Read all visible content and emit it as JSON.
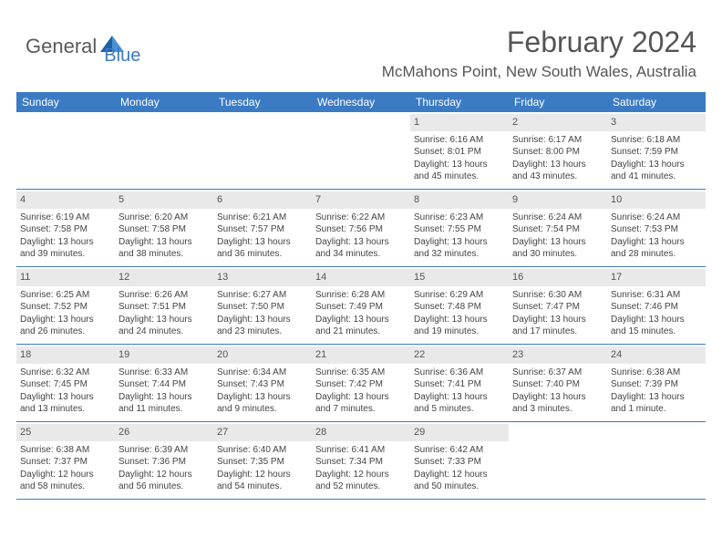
{
  "logo": {
    "text1": "General",
    "text2": "Blue"
  },
  "title": "February 2024",
  "location": "McMahons Point, New South Wales, Australia",
  "colors": {
    "header_bg": "#3b7bc4",
    "band_bg": "#e9e9e9",
    "text": "#444444",
    "title": "#555555"
  },
  "day_headers": [
    "Sunday",
    "Monday",
    "Tuesday",
    "Wednesday",
    "Thursday",
    "Friday",
    "Saturday"
  ],
  "weeks": [
    [
      {
        "n": "",
        "sr": "",
        "ss": "",
        "dl": ""
      },
      {
        "n": "",
        "sr": "",
        "ss": "",
        "dl": ""
      },
      {
        "n": "",
        "sr": "",
        "ss": "",
        "dl": ""
      },
      {
        "n": "",
        "sr": "",
        "ss": "",
        "dl": ""
      },
      {
        "n": "1",
        "sr": "Sunrise: 6:16 AM",
        "ss": "Sunset: 8:01 PM",
        "dl": "Daylight: 13 hours and 45 minutes."
      },
      {
        "n": "2",
        "sr": "Sunrise: 6:17 AM",
        "ss": "Sunset: 8:00 PM",
        "dl": "Daylight: 13 hours and 43 minutes."
      },
      {
        "n": "3",
        "sr": "Sunrise: 6:18 AM",
        "ss": "Sunset: 7:59 PM",
        "dl": "Daylight: 13 hours and 41 minutes."
      }
    ],
    [
      {
        "n": "4",
        "sr": "Sunrise: 6:19 AM",
        "ss": "Sunset: 7:58 PM",
        "dl": "Daylight: 13 hours and 39 minutes."
      },
      {
        "n": "5",
        "sr": "Sunrise: 6:20 AM",
        "ss": "Sunset: 7:58 PM",
        "dl": "Daylight: 13 hours and 38 minutes."
      },
      {
        "n": "6",
        "sr": "Sunrise: 6:21 AM",
        "ss": "Sunset: 7:57 PM",
        "dl": "Daylight: 13 hours and 36 minutes."
      },
      {
        "n": "7",
        "sr": "Sunrise: 6:22 AM",
        "ss": "Sunset: 7:56 PM",
        "dl": "Daylight: 13 hours and 34 minutes."
      },
      {
        "n": "8",
        "sr": "Sunrise: 6:23 AM",
        "ss": "Sunset: 7:55 PM",
        "dl": "Daylight: 13 hours and 32 minutes."
      },
      {
        "n": "9",
        "sr": "Sunrise: 6:24 AM",
        "ss": "Sunset: 7:54 PM",
        "dl": "Daylight: 13 hours and 30 minutes."
      },
      {
        "n": "10",
        "sr": "Sunrise: 6:24 AM",
        "ss": "Sunset: 7:53 PM",
        "dl": "Daylight: 13 hours and 28 minutes."
      }
    ],
    [
      {
        "n": "11",
        "sr": "Sunrise: 6:25 AM",
        "ss": "Sunset: 7:52 PM",
        "dl": "Daylight: 13 hours and 26 minutes."
      },
      {
        "n": "12",
        "sr": "Sunrise: 6:26 AM",
        "ss": "Sunset: 7:51 PM",
        "dl": "Daylight: 13 hours and 24 minutes."
      },
      {
        "n": "13",
        "sr": "Sunrise: 6:27 AM",
        "ss": "Sunset: 7:50 PM",
        "dl": "Daylight: 13 hours and 23 minutes."
      },
      {
        "n": "14",
        "sr": "Sunrise: 6:28 AM",
        "ss": "Sunset: 7:49 PM",
        "dl": "Daylight: 13 hours and 21 minutes."
      },
      {
        "n": "15",
        "sr": "Sunrise: 6:29 AM",
        "ss": "Sunset: 7:48 PM",
        "dl": "Daylight: 13 hours and 19 minutes."
      },
      {
        "n": "16",
        "sr": "Sunrise: 6:30 AM",
        "ss": "Sunset: 7:47 PM",
        "dl": "Daylight: 13 hours and 17 minutes."
      },
      {
        "n": "17",
        "sr": "Sunrise: 6:31 AM",
        "ss": "Sunset: 7:46 PM",
        "dl": "Daylight: 13 hours and 15 minutes."
      }
    ],
    [
      {
        "n": "18",
        "sr": "Sunrise: 6:32 AM",
        "ss": "Sunset: 7:45 PM",
        "dl": "Daylight: 13 hours and 13 minutes."
      },
      {
        "n": "19",
        "sr": "Sunrise: 6:33 AM",
        "ss": "Sunset: 7:44 PM",
        "dl": "Daylight: 13 hours and 11 minutes."
      },
      {
        "n": "20",
        "sr": "Sunrise: 6:34 AM",
        "ss": "Sunset: 7:43 PM",
        "dl": "Daylight: 13 hours and 9 minutes."
      },
      {
        "n": "21",
        "sr": "Sunrise: 6:35 AM",
        "ss": "Sunset: 7:42 PM",
        "dl": "Daylight: 13 hours and 7 minutes."
      },
      {
        "n": "22",
        "sr": "Sunrise: 6:36 AM",
        "ss": "Sunset: 7:41 PM",
        "dl": "Daylight: 13 hours and 5 minutes."
      },
      {
        "n": "23",
        "sr": "Sunrise: 6:37 AM",
        "ss": "Sunset: 7:40 PM",
        "dl": "Daylight: 13 hours and 3 minutes."
      },
      {
        "n": "24",
        "sr": "Sunrise: 6:38 AM",
        "ss": "Sunset: 7:39 PM",
        "dl": "Daylight: 13 hours and 1 minute."
      }
    ],
    [
      {
        "n": "25",
        "sr": "Sunrise: 6:38 AM",
        "ss": "Sunset: 7:37 PM",
        "dl": "Daylight: 12 hours and 58 minutes."
      },
      {
        "n": "26",
        "sr": "Sunrise: 6:39 AM",
        "ss": "Sunset: 7:36 PM",
        "dl": "Daylight: 12 hours and 56 minutes."
      },
      {
        "n": "27",
        "sr": "Sunrise: 6:40 AM",
        "ss": "Sunset: 7:35 PM",
        "dl": "Daylight: 12 hours and 54 minutes."
      },
      {
        "n": "28",
        "sr": "Sunrise: 6:41 AM",
        "ss": "Sunset: 7:34 PM",
        "dl": "Daylight: 12 hours and 52 minutes."
      },
      {
        "n": "29",
        "sr": "Sunrise: 6:42 AM",
        "ss": "Sunset: 7:33 PM",
        "dl": "Daylight: 12 hours and 50 minutes."
      },
      {
        "n": "",
        "sr": "",
        "ss": "",
        "dl": ""
      },
      {
        "n": "",
        "sr": "",
        "ss": "",
        "dl": ""
      }
    ]
  ]
}
